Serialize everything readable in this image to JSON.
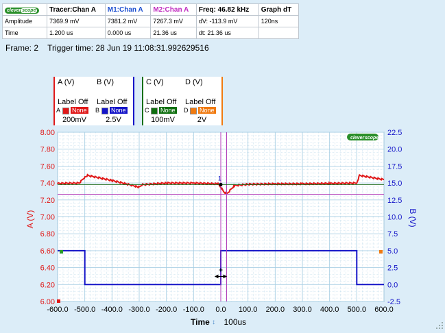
{
  "measurements": {
    "headers": [
      "Tracer:Chan A",
      "M1:Chan A",
      "M2:Chan A",
      "Freq: 46.82 kHz",
      "Graph dT"
    ],
    "logo_text": [
      "clever",
      "scope"
    ],
    "rows": [
      {
        "label": "Amplitude",
        "cells": [
          "7369.9 mV",
          "7381.2 mV",
          "7267.3 mV",
          "dV: -113.9 mV",
          "120ns"
        ]
      },
      {
        "label": "Time",
        "cells": [
          "1.200 us",
          "0.000 us",
          "21.36 us",
          "dt:  21.36 us",
          ""
        ]
      }
    ]
  },
  "frame_info": "Frame: 2    Trigger time: 28 Jun 19 11:08:31.992629516",
  "channels": [
    {
      "title": "A (V)",
      "label_off": "Label Off",
      "letter": "A",
      "none": "None",
      "scale": "200mV",
      "color": "#e01818"
    },
    {
      "title": "B (V)",
      "label_off": "Label Off",
      "letter": "B",
      "none": "None",
      "scale": "2.5V",
      "color": "#1414c8"
    },
    {
      "title": "C (V)",
      "label_off": "Label Off",
      "letter": "C",
      "none": "None",
      "scale": "100mV",
      "color": "#0f6f0f"
    },
    {
      "title": "D (V)",
      "label_off": "Label Off",
      "letter": "D",
      "none": "None",
      "scale": "2V",
      "color": "#f07a10"
    }
  ],
  "time_axis": {
    "label": "Time",
    "scale": "100us"
  },
  "marker_label": "1",
  "colors": {
    "chanA": "#e01818",
    "chanB": "#1414c8",
    "marker": "#b23cb8",
    "background": "#dcedf8",
    "grid": "#a9cfe4"
  },
  "chart_data": {
    "type": "line",
    "xlabel": "Time",
    "ylabel_left": "A (V)",
    "ylabel_right": "B (V)",
    "xlim": [
      -600,
      600
    ],
    "ylim_left": [
      6.0,
      8.0
    ],
    "ylim_right": [
      -2.5,
      22.5
    ],
    "x_ticks": [
      "-600.0",
      "-500.0",
      "-400.0",
      "-300.0",
      "-200.0",
      "-100.0",
      "0.0",
      "100.0",
      "200.0",
      "300.0",
      "400.0",
      "500.0",
      "600.0"
    ],
    "y_left_ticks": [
      "6.00",
      "6.20",
      "6.40",
      "6.60",
      "6.80",
      "7.00",
      "7.20",
      "7.40",
      "7.60",
      "7.80",
      "8.00"
    ],
    "y_right_ticks": [
      "-2.5",
      "0.0",
      "2.5",
      "5.0",
      "7.5",
      "10.0",
      "12.5",
      "15.0",
      "17.5",
      "20.0",
      "22.5"
    ],
    "grid": true,
    "series": [
      {
        "name": "A (V)",
        "axis": "left",
        "x": [
          -600,
          -520,
          -500,
          -490,
          -400,
          -310,
          -300,
          -290,
          -200,
          -100,
          -10,
          0,
          10,
          22,
          50,
          100,
          200,
          300,
          400,
          500,
          510,
          600
        ],
        "y": [
          7.395,
          7.4,
          7.47,
          7.49,
          7.43,
          7.36,
          7.35,
          7.38,
          7.4,
          7.4,
          7.39,
          7.35,
          7.3,
          7.27,
          7.37,
          7.385,
          7.39,
          7.39,
          7.395,
          7.4,
          7.49,
          7.44
        ]
      },
      {
        "name": "B (V)",
        "axis": "right",
        "x": [
          -600,
          -500,
          -500,
          -10,
          0,
          0,
          500,
          500,
          600
        ],
        "y": [
          5.0,
          5.0,
          0.0,
          0.0,
          0.0,
          5.0,
          5.0,
          0.0,
          0.0
        ]
      }
    ],
    "markers": {
      "m1_time_us": 0.0,
      "m2_time_us": 21.36,
      "m1_level_v": 7.3812,
      "m2_level_v": 7.2673,
      "trigger_level_v": 7.38
    }
  }
}
